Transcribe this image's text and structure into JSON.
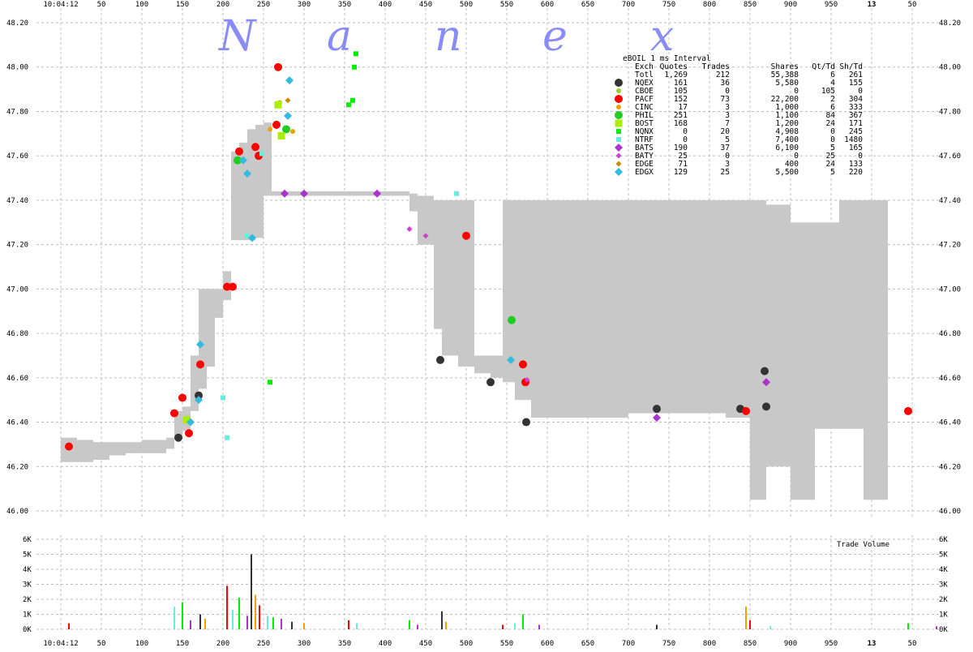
{
  "watermark": [
    "N",
    "a",
    "n",
    "e",
    "x"
  ],
  "time_label": "10:04:12",
  "minute_label": "13",
  "colors": {
    "spread_fill": "#c8c8c8",
    "grid": "#bdbdbd",
    "NQEX": "#333333",
    "CBOE": "#9acd32",
    "PACF": "#ff0000",
    "CINC": "#f0a000",
    "PHIL": "#22cc22",
    "BOST": "#aaee00",
    "NQNX": "#00ee00",
    "NTRF": "#66eedd",
    "BATS": "#aa33cc",
    "BATY": "#cc44cc",
    "EDGE": "#cc8800",
    "EDGX": "#33bbdd"
  },
  "legend": {
    "title": "eBOIL 1 ms Interval",
    "header": [
      "Exch",
      "Quotes",
      "Trades",
      "Shares",
      "Qt/Td",
      "Sh/Td"
    ],
    "total": [
      "Totl",
      "1,269",
      "212",
      "55,388",
      "6",
      "261"
    ],
    "rows": [
      {
        "exch": "NQEX",
        "quotes": "161",
        "trades": "36",
        "shares": "5,580",
        "qt_td": "4",
        "sh_td": "155",
        "marker": "circle"
      },
      {
        "exch": "CBOE",
        "quotes": "105",
        "trades": "0",
        "shares": "0",
        "qt_td": "105",
        "sh_td": "0",
        "marker": "small-circle"
      },
      {
        "exch": "PACF",
        "quotes": "152",
        "trades": "73",
        "shares": "22,200",
        "qt_td": "2",
        "sh_td": "304",
        "marker": "circle"
      },
      {
        "exch": "CINC",
        "quotes": "17",
        "trades": "3",
        "shares": "1,000",
        "qt_td": "6",
        "sh_td": "333",
        "marker": "small-circle"
      },
      {
        "exch": "PHIL",
        "quotes": "251",
        "trades": "3",
        "shares": "1,100",
        "qt_td": "84",
        "sh_td": "367",
        "marker": "circle"
      },
      {
        "exch": "BOST",
        "quotes": "168",
        "trades": "7",
        "shares": "1,200",
        "qt_td": "24",
        "sh_td": "171",
        "marker": "square"
      },
      {
        "exch": "NQNX",
        "quotes": "0",
        "trades": "20",
        "shares": "4,908",
        "qt_td": "0",
        "sh_td": "245",
        "marker": "small-square"
      },
      {
        "exch": "NTRF",
        "quotes": "0",
        "trades": "5",
        "shares": "7,400",
        "qt_td": "0",
        "sh_td": "1480",
        "marker": "small-square"
      },
      {
        "exch": "BATS",
        "quotes": "190",
        "trades": "37",
        "shares": "6,100",
        "qt_td": "5",
        "sh_td": "165",
        "marker": "diamond"
      },
      {
        "exch": "BATY",
        "quotes": "25",
        "trades": "0",
        "shares": "0",
        "qt_td": "25",
        "sh_td": "0",
        "marker": "small-diamond"
      },
      {
        "exch": "EDGE",
        "quotes": "71",
        "trades": "3",
        "shares": "400",
        "qt_td": "24",
        "sh_td": "133",
        "marker": "small-diamond"
      },
      {
        "exch": "EDGX",
        "quotes": "129",
        "trades": "25",
        "shares": "5,500",
        "qt_td": "5",
        "sh_td": "220",
        "marker": "diamond"
      }
    ]
  },
  "chart_data": [
    {
      "type": "scatter",
      "title": "eBOIL 1 ms Interval",
      "x_ticks": [
        "10:04:12",
        "50",
        "100",
        "150",
        "200",
        "250",
        "300",
        "350",
        "400",
        "450",
        "500",
        "550",
        "600",
        "650",
        "700",
        "750",
        "800",
        "850",
        "900",
        "950",
        "13",
        "50"
      ],
      "y_ticks": [
        "46.00",
        "46.20",
        "46.40",
        "46.60",
        "46.80",
        "47.00",
        "47.20",
        "47.40",
        "47.60",
        "47.80",
        "48.00",
        "48.20"
      ],
      "xlim": [
        0,
        1050
      ],
      "ylim": [
        45.95,
        48.22
      ],
      "grid": true,
      "legend_position": "top-right",
      "spread_band": [
        [
          0,
          46.22,
          46.33
        ],
        [
          20,
          46.22,
          46.32
        ],
        [
          40,
          46.23,
          46.31
        ],
        [
          60,
          46.25,
          46.31
        ],
        [
          80,
          46.26,
          46.31
        ],
        [
          100,
          46.26,
          46.32
        ],
        [
          130,
          46.28,
          46.33
        ],
        [
          140,
          46.33,
          46.45
        ],
        [
          150,
          46.36,
          46.47
        ],
        [
          160,
          46.45,
          46.7
        ],
        [
          170,
          46.55,
          47.0
        ],
        [
          180,
          46.65,
          47.0
        ],
        [
          190,
          46.87,
          47.0
        ],
        [
          200,
          46.95,
          47.08
        ],
        [
          210,
          47.22,
          47.62
        ],
        [
          220,
          47.22,
          47.66
        ],
        [
          230,
          47.22,
          47.72
        ],
        [
          240,
          47.23,
          47.74
        ],
        [
          250,
          47.42,
          47.75
        ],
        [
          260,
          47.42,
          47.44
        ],
        [
          300,
          47.42,
          47.44
        ],
        [
          350,
          47.42,
          47.44
        ],
        [
          400,
          47.42,
          47.44
        ],
        [
          430,
          47.35,
          47.43
        ],
        [
          440,
          47.2,
          47.42
        ],
        [
          460,
          46.82,
          47.4
        ],
        [
          470,
          46.7,
          47.4
        ],
        [
          490,
          46.65,
          47.4
        ],
        [
          510,
          46.62,
          46.7
        ],
        [
          530,
          46.6,
          46.7
        ],
        [
          545,
          46.58,
          47.4
        ],
        [
          560,
          46.5,
          47.4
        ],
        [
          580,
          46.42,
          47.4
        ],
        [
          600,
          46.42,
          47.4
        ],
        [
          650,
          46.42,
          47.4
        ],
        [
          700,
          46.44,
          47.4
        ],
        [
          750,
          46.44,
          47.4
        ],
        [
          800,
          46.44,
          47.4
        ],
        [
          820,
          46.42,
          47.4
        ],
        [
          850,
          46.05,
          47.4
        ],
        [
          870,
          46.2,
          47.38
        ],
        [
          900,
          46.05,
          47.3
        ],
        [
          930,
          46.37,
          47.3
        ],
        [
          960,
          46.37,
          47.4
        ],
        [
          990,
          46.05,
          47.4
        ],
        [
          1010,
          46.05,
          47.4
        ]
      ],
      "series": [
        {
          "name": "NQEX",
          "points": [
            [
              145,
              46.33
            ],
            [
              170,
              46.52
            ],
            [
              468,
              46.68
            ],
            [
              530,
              46.58
            ],
            [
              574,
              46.4
            ],
            [
              735,
              46.46
            ],
            [
              838,
              46.46
            ],
            [
              868,
              46.63
            ],
            [
              870,
              46.47
            ]
          ]
        },
        {
          "name": "PACF",
          "points": [
            [
              10,
              46.29
            ],
            [
              140,
              46.44
            ],
            [
              150,
              46.51
            ],
            [
              158,
              46.35
            ],
            [
              172,
              46.66
            ],
            [
              205,
              47.01
            ],
            [
              212,
              47.01
            ],
            [
              220,
              47.62
            ],
            [
              240,
              47.64
            ],
            [
              244,
              47.6
            ],
            [
              266,
              47.74
            ],
            [
              268,
              48.0
            ],
            [
              500,
              47.24
            ],
            [
              570,
              46.66
            ],
            [
              573,
              46.58
            ],
            [
              845,
              46.45
            ],
            [
              1045,
              46.45
            ]
          ]
        },
        {
          "name": "CINC",
          "points": [
            [
              258,
              47.72
            ],
            [
              270,
              47.84
            ],
            [
              286,
              47.71
            ]
          ]
        },
        {
          "name": "PHIL",
          "points": [
            [
              218,
              47.58
            ],
            [
              278,
              47.72
            ],
            [
              556,
              46.86
            ]
          ]
        },
        {
          "name": "BOST",
          "points": [
            [
              155,
              46.41
            ],
            [
              268,
              47.83
            ],
            [
              272,
              47.69
            ]
          ]
        },
        {
          "name": "NQNX",
          "points": [
            [
              258,
              46.58
            ],
            [
              355,
              47.83
            ],
            [
              360,
              47.85
            ],
            [
              362,
              48.0
            ],
            [
              364,
              48.06
            ]
          ]
        },
        {
          "name": "NTRF",
          "points": [
            [
              200,
              46.51
            ],
            [
              205,
              46.33
            ],
            [
              230,
              47.24
            ],
            [
              248,
              47.61
            ],
            [
              488,
              47.43
            ]
          ]
        },
        {
          "name": "BATS",
          "points": [
            [
              276,
              47.43
            ],
            [
              300,
              47.43
            ],
            [
              390,
              47.43
            ],
            [
              735,
              46.42
            ],
            [
              870,
              46.58
            ]
          ]
        },
        {
          "name": "BATY",
          "points": [
            [
              430,
              47.27
            ],
            [
              450,
              47.24
            ],
            [
              575,
              46.59
            ]
          ]
        },
        {
          "name": "EDGE",
          "points": [
            [
              280,
              47.85
            ]
          ]
        },
        {
          "name": "EDGX",
          "points": [
            [
              160,
              46.4
            ],
            [
              170,
              46.5
            ],
            [
              172,
              46.75
            ],
            [
              225,
              47.58
            ],
            [
              230,
              47.52
            ],
            [
              236,
              47.23
            ],
            [
              280,
              47.78
            ],
            [
              282,
              47.94
            ],
            [
              555,
              46.68
            ]
          ]
        }
      ]
    },
    {
      "type": "bar",
      "title": "Trade Volume",
      "y_ticks": [
        "0K",
        "1K",
        "2K",
        "3K",
        "4K",
        "5K",
        "6K"
      ],
      "ylim": [
        0,
        6000
      ],
      "bars": [
        {
          "x": 10,
          "value": 400
        },
        {
          "x": 140,
          "value": 1500
        },
        {
          "x": 150,
          "value": 1800
        },
        {
          "x": 160,
          "value": 600
        },
        {
          "x": 172,
          "value": 1000
        },
        {
          "x": 178,
          "value": 700
        },
        {
          "x": 205,
          "value": 2900
        },
        {
          "x": 212,
          "value": 1300
        },
        {
          "x": 220,
          "value": 2100
        },
        {
          "x": 230,
          "value": 900
        },
        {
          "x": 235,
          "value": 5000
        },
        {
          "x": 240,
          "value": 2300
        },
        {
          "x": 245,
          "value": 1600
        },
        {
          "x": 255,
          "value": 900
        },
        {
          "x": 262,
          "value": 800
        },
        {
          "x": 272,
          "value": 700
        },
        {
          "x": 285,
          "value": 500
        },
        {
          "x": 300,
          "value": 400
        },
        {
          "x": 355,
          "value": 600
        },
        {
          "x": 365,
          "value": 400
        },
        {
          "x": 430,
          "value": 600
        },
        {
          "x": 440,
          "value": 300
        },
        {
          "x": 470,
          "value": 1200
        },
        {
          "x": 475,
          "value": 500
        },
        {
          "x": 545,
          "value": 300
        },
        {
          "x": 560,
          "value": 400
        },
        {
          "x": 570,
          "value": 1000
        },
        {
          "x": 590,
          "value": 300
        },
        {
          "x": 735,
          "value": 300
        },
        {
          "x": 845,
          "value": 1500
        },
        {
          "x": 850,
          "value": 600
        },
        {
          "x": 875,
          "value": 200
        },
        {
          "x": 1045,
          "value": 400
        },
        {
          "x": 1080,
          "value": 200
        }
      ]
    }
  ]
}
